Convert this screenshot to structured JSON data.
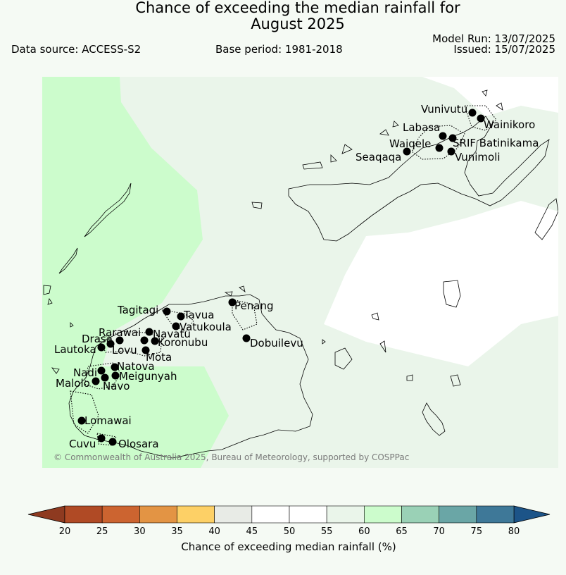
{
  "title_line1": "Chance of exceeding the median rainfall for",
  "title_line2": "August 2025",
  "data_source": "Data source: ACCESS-S2",
  "base_period": "Base period: 1981-2018",
  "model_run": "Model Run: 13/07/2025",
  "issued": "Issued: 15/07/2025",
  "copyright": "© Commonwealth of Australia 2025, Bureau of Meteorology, supported by COSPPac",
  "places": [
    "Vunivutu",
    "Wainikoro",
    "Labasa",
    "Waiqele",
    "SRIF Batinikama",
    "Seaqaqa",
    "Vunimoli",
    "Tagitagi",
    "Tavua",
    "Penang",
    "Vatukoula",
    "Rarawai",
    "Navatu",
    "Drasa",
    "Koronubu",
    "Lautoka",
    "Lovu",
    "Dobuilevu",
    "Mota",
    "Nadi",
    "Natova",
    "Meigunyah",
    "Malolo",
    "Navo",
    "Lomawai",
    "Cuvu",
    "Olosara"
  ],
  "colorbar": {
    "label": "Chance of exceeding median rainfall (%)",
    "ticks": [
      "20",
      "25",
      "30",
      "35",
      "40",
      "45",
      "50",
      "55",
      "60",
      "65",
      "70",
      "75",
      "80"
    ],
    "colors": [
      "#b04a25",
      "#cc6430",
      "#e39444",
      "#fdd066",
      "#e8ebe6",
      "#ffffff",
      "#ffffff",
      "#eaf5ea",
      "#ccfccc",
      "#9ad1b6",
      "#6aa6a6",
      "#3e7898"
    ],
    "under_color": "#8e3a20",
    "over_color": "#1c5488"
  },
  "map_colors": {
    "band_60_65": "#ccfccc",
    "band_55_60": "#eaf5ea",
    "band_50_55": "#ffffff",
    "page_bg": "#f5faf4"
  }
}
